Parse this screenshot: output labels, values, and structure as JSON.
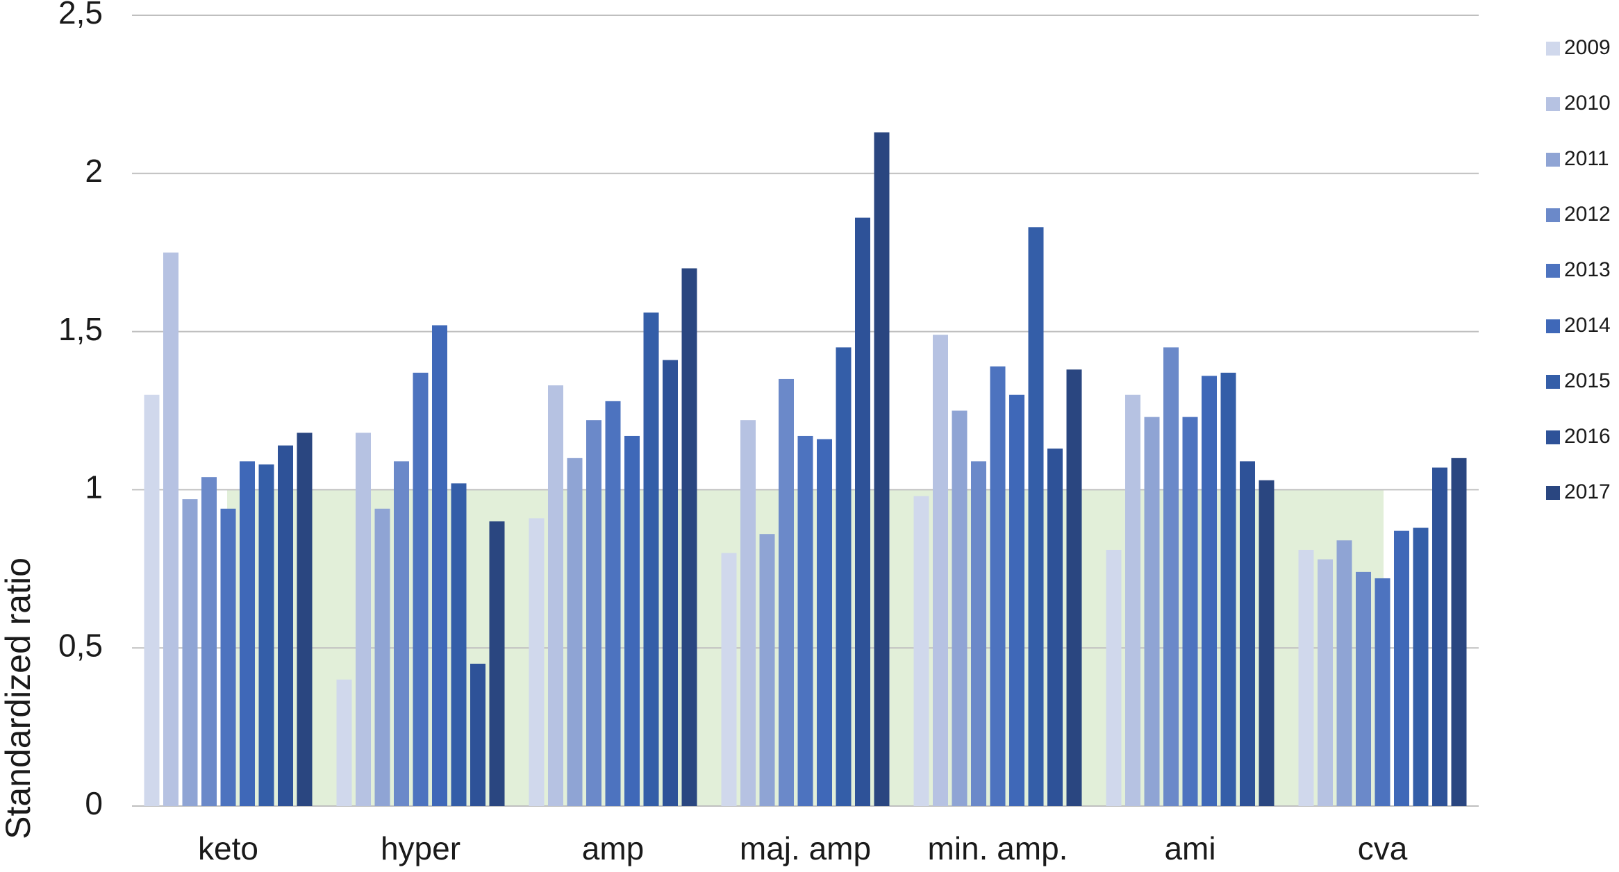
{
  "chart_data": {
    "type": "bar",
    "y_label": "Standardized ratio",
    "categories": [
      "keto",
      "hyper",
      "amp",
      "maj. amp",
      "min. amp.",
      "ami",
      "cva"
    ],
    "series": [
      {
        "name": "2009",
        "color": "#d0d8ec",
        "values": [
          1.3,
          0.4,
          0.91,
          0.8,
          0.98,
          0.81,
          0.81
        ]
      },
      {
        "name": "2010",
        "color": "#b6c2e2",
        "values": [
          1.75,
          1.18,
          1.33,
          1.22,
          1.49,
          1.3,
          0.78
        ]
      },
      {
        "name": "2011",
        "color": "#8fa4d4",
        "values": [
          0.97,
          0.94,
          1.1,
          0.86,
          1.25,
          1.23,
          0.84
        ]
      },
      {
        "name": "2012",
        "color": "#6b89c9",
        "values": [
          1.04,
          1.09,
          1.22,
          1.35,
          1.09,
          1.45,
          0.74
        ]
      },
      {
        "name": "2013",
        "color": "#4d73bf",
        "values": [
          0.94,
          1.37,
          1.28,
          1.17,
          1.39,
          1.23,
          0.72
        ]
      },
      {
        "name": "2014",
        "color": "#3f68b8",
        "values": [
          1.09,
          1.52,
          1.17,
          1.16,
          1.3,
          1.36,
          0.87
        ]
      },
      {
        "name": "2015",
        "color": "#345ea8",
        "values": [
          1.08,
          1.02,
          1.56,
          1.45,
          1.83,
          1.37,
          0.88
        ]
      },
      {
        "name": "2016",
        "color": "#2e5298",
        "values": [
          1.14,
          0.45,
          1.41,
          1.86,
          1.13,
          1.09,
          1.07
        ]
      },
      {
        "name": "2017",
        "color": "#2a4680",
        "values": [
          1.18,
          0.9,
          1.7,
          2.13,
          1.38,
          1.03,
          1.1
        ]
      }
    ],
    "ylim": [
      0,
      2.5
    ],
    "yticks": [
      0,
      {
        "value": 0.5,
        "label": "0,5"
      },
      1,
      {
        "value": 1.5,
        "label": "1,5"
      },
      2,
      {
        "value": 2.5,
        "label": "2,5"
      }
    ],
    "grid": true,
    "legend": "right"
  }
}
